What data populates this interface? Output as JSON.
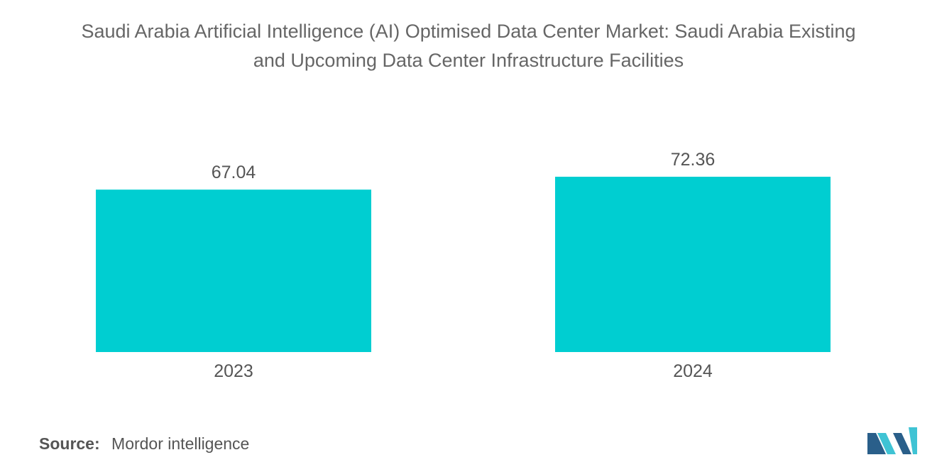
{
  "title": {
    "line1": "Saudi Arabia Artificial Intelligence (AI) Optimised Data Center Market: Saudi Arabia Existing",
    "line2": "and Upcoming Data Center Infrastructure Facilities"
  },
  "source": {
    "label": "Source:",
    "value": "Mordor intelligence"
  },
  "colors": {
    "bar": "#00CED1",
    "text": "#555555",
    "logo_dark": "#2a5f8a",
    "logo_light": "#3fc3d4"
  },
  "logo": {
    "icon": "mordor-intelligence-logo-icon"
  },
  "chart_data": {
    "type": "bar",
    "title": "Saudi Arabia Artificial Intelligence (AI) Optimised Data Center Market: Saudi Arabia Existing and Upcoming Data Center Infrastructure Facilities",
    "categories": [
      "2023",
      "2024"
    ],
    "values": [
      67.04,
      72.36
    ],
    "value_labels": [
      "67.04",
      "72.36"
    ],
    "xlabel": "",
    "ylabel": "",
    "ylim": [
      0,
      72.36
    ],
    "grid": false,
    "legend": "none"
  }
}
